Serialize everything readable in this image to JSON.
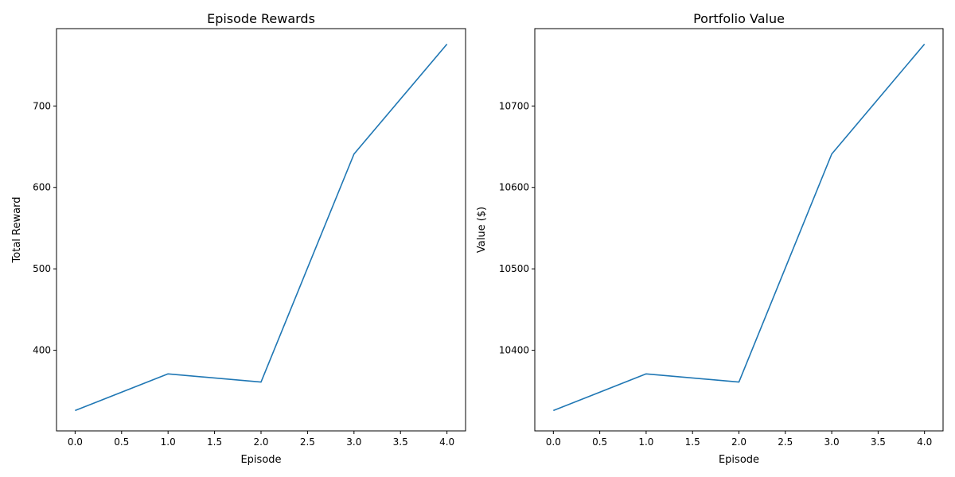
{
  "chart_data": [
    {
      "type": "line",
      "title": "Episode Rewards",
      "xlabel": "Episode",
      "ylabel": "Total Reward",
      "xlim": [
        -0.2,
        4.2
      ],
      "ylim": [
        301,
        795
      ],
      "xticks": [
        0.0,
        0.5,
        1.0,
        1.5,
        2.0,
        2.5,
        3.0,
        3.5,
        4.0
      ],
      "xtick_labels": [
        "0.0",
        "0.5",
        "1.0",
        "1.5",
        "2.0",
        "2.5",
        "3.0",
        "3.5",
        "4.0"
      ],
      "yticks": [
        400,
        500,
        600,
        700
      ],
      "ytick_labels": [
        "400",
        "500",
        "600",
        "700"
      ],
      "grid": false,
      "series": [
        {
          "x": [
            0,
            1,
            2,
            3,
            4
          ],
          "values": [
            326,
            371,
            361,
            641,
            776
          ]
        }
      ]
    },
    {
      "type": "line",
      "title": "Portfolio Value",
      "xlabel": "Episode",
      "ylabel": "Value ($)",
      "xlim": [
        -0.2,
        4.2
      ],
      "ylim": [
        10301,
        10795
      ],
      "xticks": [
        0.0,
        0.5,
        1.0,
        1.5,
        2.0,
        2.5,
        3.0,
        3.5,
        4.0
      ],
      "xtick_labels": [
        "0.0",
        "0.5",
        "1.0",
        "1.5",
        "2.0",
        "2.5",
        "3.0",
        "3.5",
        "4.0"
      ],
      "yticks": [
        10400,
        10500,
        10600,
        10700
      ],
      "ytick_labels": [
        "10400",
        "10500",
        "10600",
        "10700"
      ],
      "grid": false,
      "series": [
        {
          "x": [
            0,
            1,
            2,
            3,
            4
          ],
          "values": [
            10326,
            10371,
            10361,
            10641,
            10776
          ]
        }
      ]
    }
  ],
  "colors": {
    "line": "#1f77b4",
    "axes": "#000000",
    "background": "#ffffff"
  }
}
